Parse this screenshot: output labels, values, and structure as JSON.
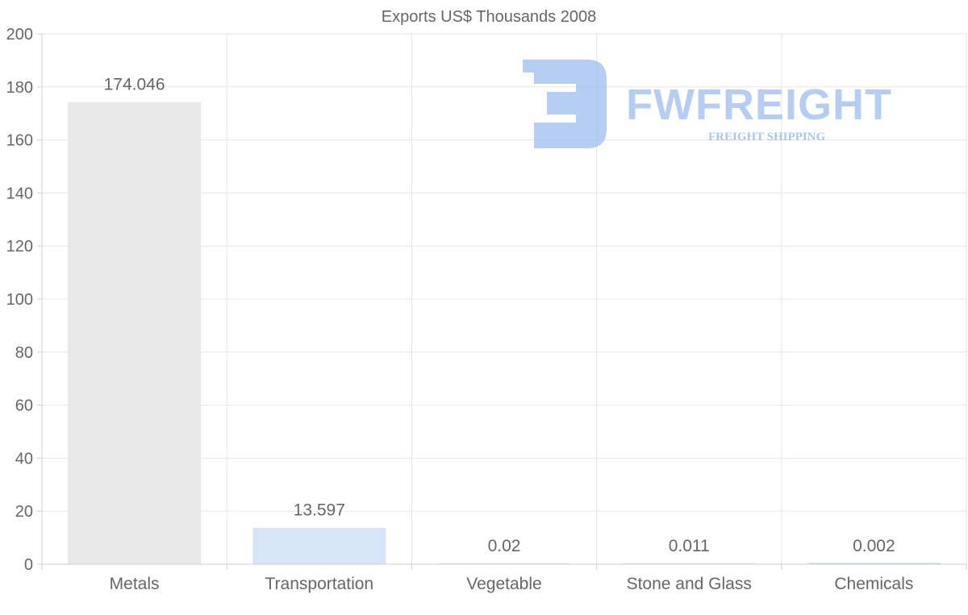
{
  "chart_data": {
    "type": "bar",
    "title": "Exports US$ Thousands 2008",
    "categories": [
      "Metals",
      "Transportation",
      "Vegetable",
      "Stone and Glass",
      "Chemicals"
    ],
    "values": [
      174.046,
      13.597,
      0.02,
      0.011,
      0.002
    ],
    "value_labels": [
      "174.046",
      "13.597",
      "0.02",
      "0.011",
      "0.002"
    ],
    "bar_colors": [
      "#e8e8e8",
      "#d6e6f8",
      "#eaf2ea",
      "#eeeeee",
      "#b5d6e0"
    ],
    "ylim": [
      0,
      200
    ],
    "yticks": [
      "0",
      "20",
      "40",
      "60",
      "80",
      "100",
      "120",
      "140",
      "160",
      "180",
      "200"
    ],
    "xlabel": "",
    "ylabel": "",
    "grid": true
  },
  "watermark": {
    "brand": "FWFREIGHT",
    "tagline": "FREIGHT SHIPPING",
    "color": "#9dbdf0"
  }
}
